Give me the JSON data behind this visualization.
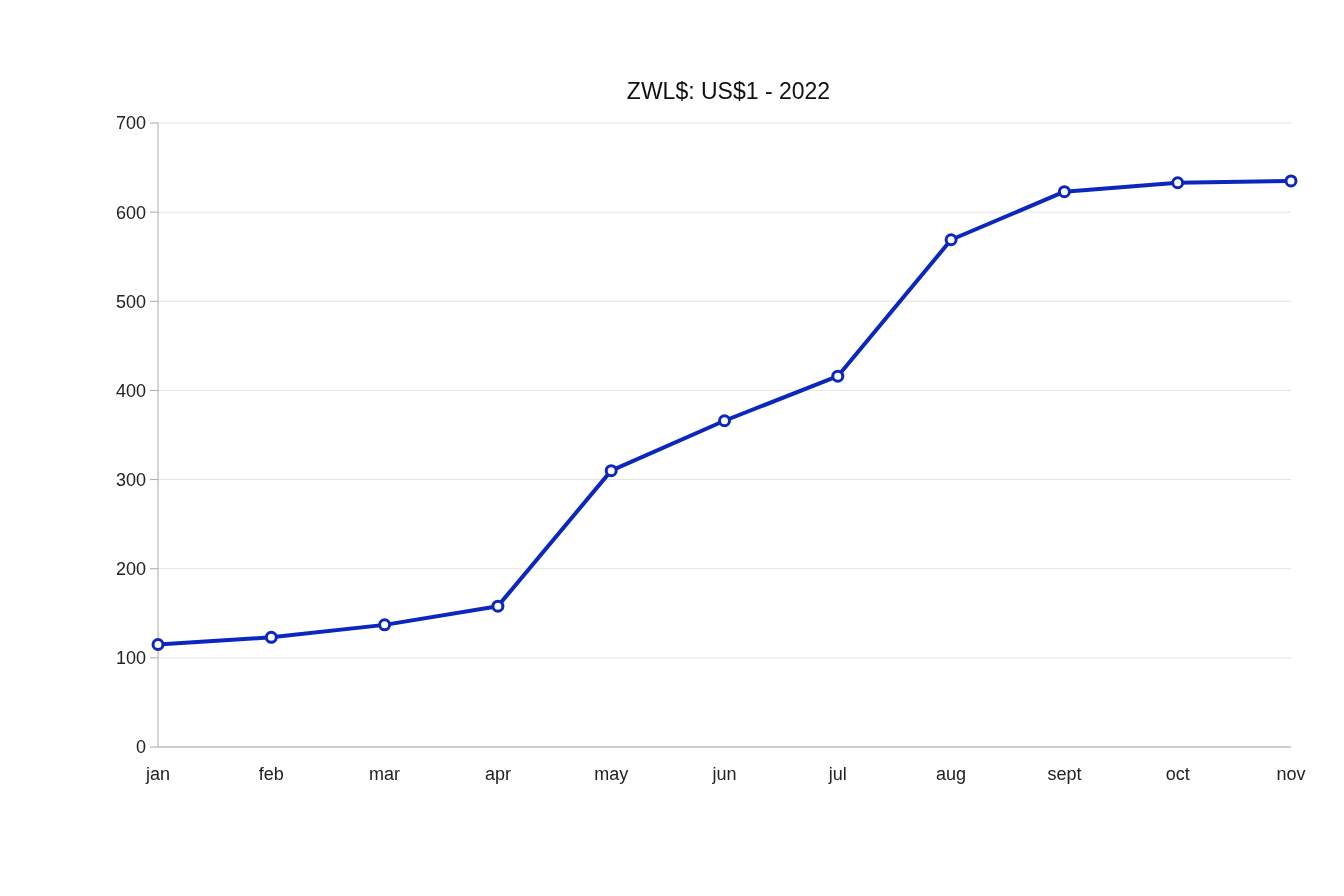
{
  "chart_data": {
    "type": "line",
    "title": "ZWL$: US$1 - 2022",
    "categories": [
      "jan",
      "feb",
      "mar",
      "apr",
      "may",
      "jun",
      "jul",
      "aug",
      "sept",
      "oct",
      "nov"
    ],
    "series": [
      {
        "color": "#0b27bd",
        "values": [
          115,
          123,
          137,
          158,
          310,
          366,
          416,
          569,
          623,
          633,
          635
        ]
      }
    ],
    "ylim": [
      0,
      700
    ],
    "yticks": [
      0,
      100,
      200,
      300,
      400,
      500,
      600,
      700
    ],
    "grid": "y",
    "legend": false,
    "marker": "circle",
    "line_style": "solid"
  }
}
